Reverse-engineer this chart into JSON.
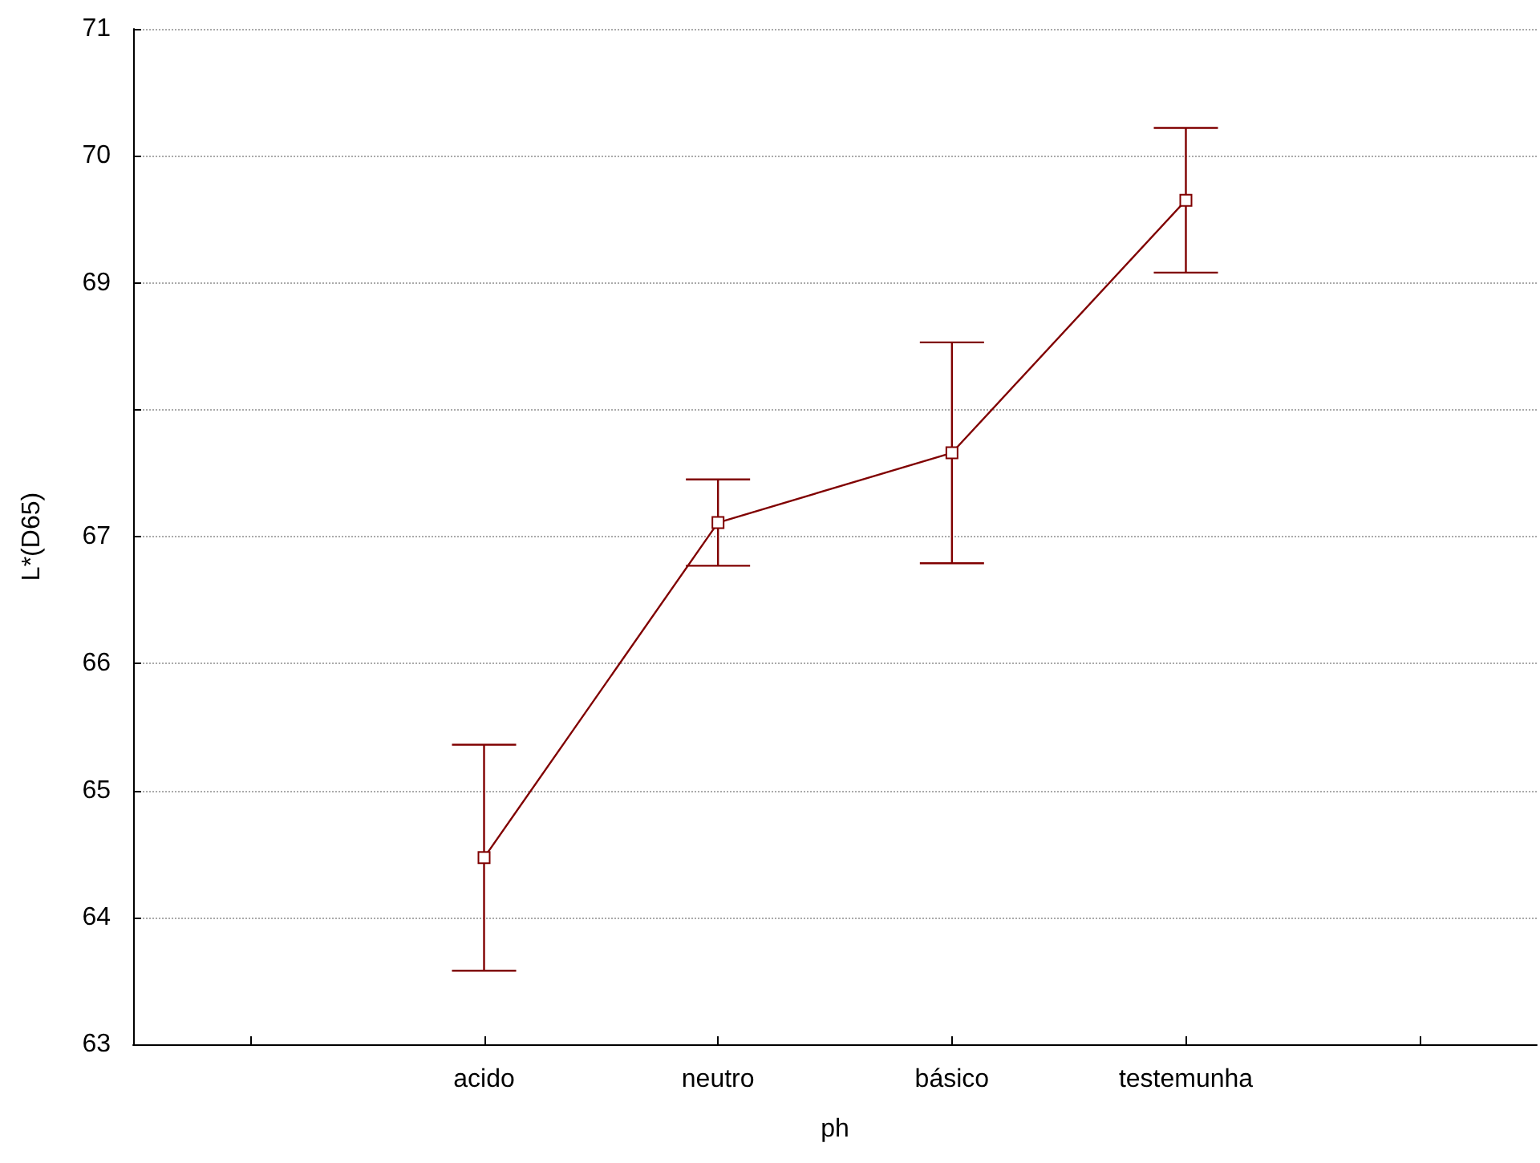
{
  "chart_data": {
    "type": "line",
    "xlabel": "ph",
    "ylabel": "L*(D65)",
    "categories": [
      null,
      "acido",
      "neutro",
      "básico",
      "testemunha",
      null
    ],
    "values": [
      null,
      64.47,
      67.11,
      67.66,
      69.65,
      null
    ],
    "errors": [
      null,
      0.89,
      0.34,
      0.87,
      0.57,
      null
    ],
    "color": "#800000",
    "ylim": [
      63,
      71
    ],
    "yticks": [
      63,
      64,
      65,
      66,
      67,
      {
        "value": 68,
        "label": null
      },
      69,
      70,
      71
    ],
    "grid": "y",
    "marker": "square",
    "line_style": "solid"
  }
}
